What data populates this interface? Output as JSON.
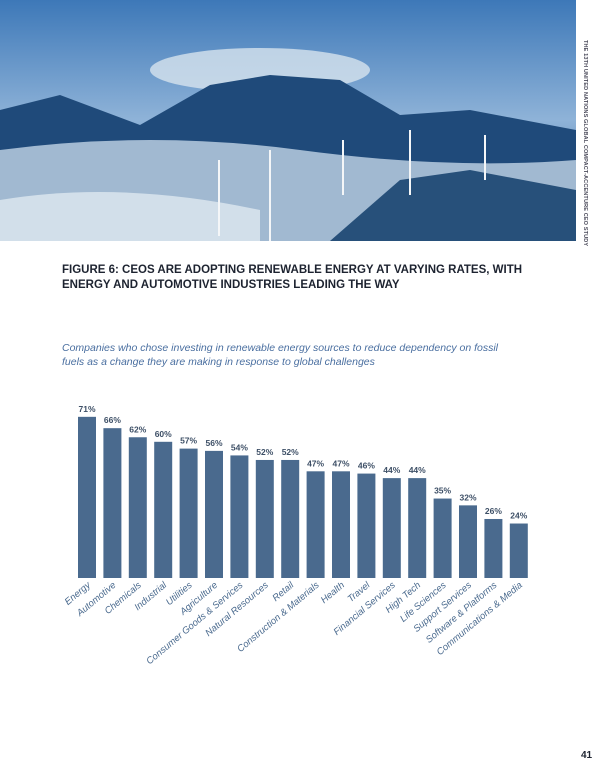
{
  "side_header": "THE 13TH UNITED NATIONS GLOBAL COMPACT-ACCENTURE CEO STUDY",
  "title": "FIGURE 6: CEOS ARE ADOPTING RENEWABLE ENERGY AT VARYING RATES, WITH ENERGY AND AUTOMOTIVE INDUSTRIES LEADING THE WAY",
  "subtitle": "Companies who chose investing in renewable energy sources to reduce dependency on fossil fuels as a change they are making in response to global challenges",
  "page_number": "41",
  "chart_data": {
    "type": "bar",
    "title": "",
    "xlabel": "",
    "ylabel": "",
    "ylim": [
      0,
      100
    ],
    "bar_color": "#4a6a8e",
    "categories": [
      "Energy",
      "Automotive",
      "Chemicals",
      "Industrial",
      "Utilities",
      "Agriculture",
      "Consumer Goods & Services",
      "Natural Resources",
      "Retail",
      "Construction & Materials",
      "Health",
      "Travel",
      "Financial Services",
      "High Tech",
      "Life Sciences",
      "Support Services",
      "Software & Platforms",
      "Communications & Media"
    ],
    "values": [
      71,
      66,
      62,
      60,
      57,
      56,
      54,
      52,
      52,
      47,
      47,
      46,
      44,
      44,
      35,
      32,
      26,
      24
    ],
    "value_labels": [
      "71%",
      "66%",
      "62%",
      "60%",
      "57%",
      "56%",
      "54%",
      "52%",
      "52%",
      "47%",
      "47%",
      "46%",
      "44%",
      "44%",
      "35%",
      "32%",
      "26%",
      "24%"
    ]
  }
}
